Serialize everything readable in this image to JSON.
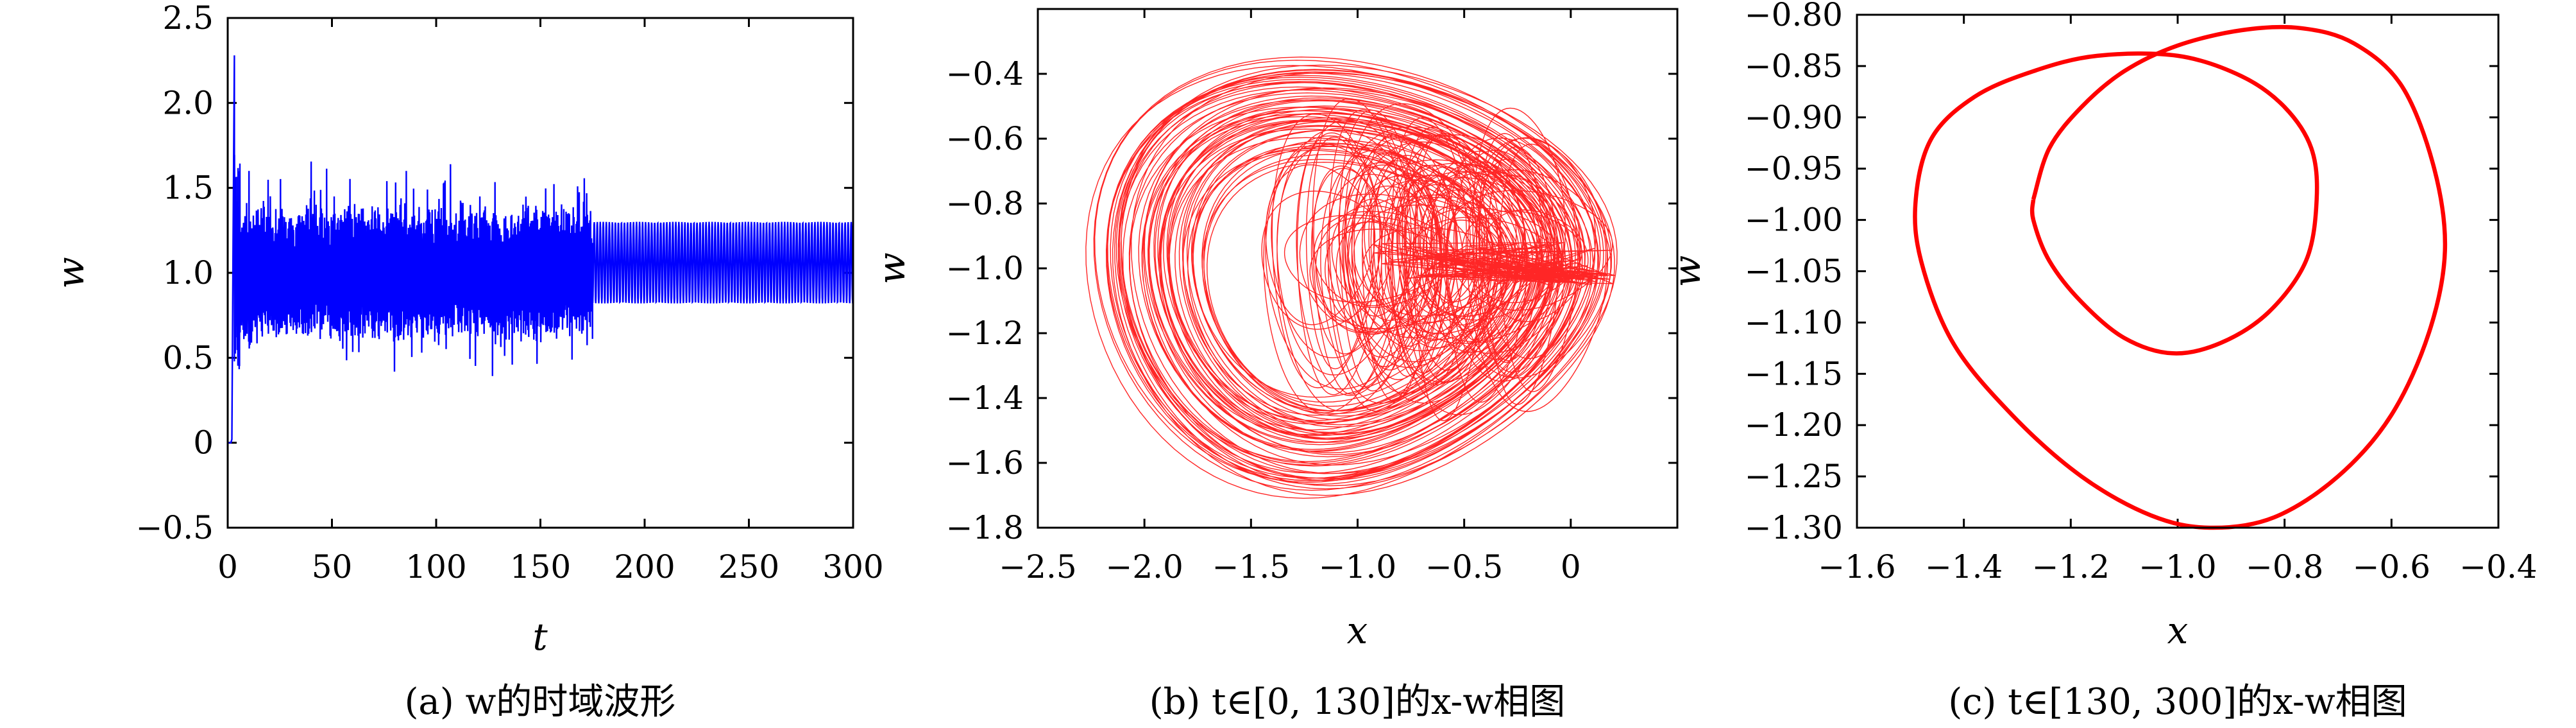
{
  "chart_data": [
    {
      "type": "line",
      "xlabel": "t",
      "ylabel": "w",
      "caption": "(a) w的时域波形",
      "xlim": [
        0,
        300
      ],
      "ylim": [
        -0.5,
        2.5
      ],
      "xticks": [
        "0",
        "50",
        "100",
        "150",
        "200",
        "250",
        "300"
      ],
      "yticks": [
        "−0.5",
        "0",
        "0.5",
        "1.0",
        "1.5",
        "2.0",
        "2.5"
      ],
      "series": [
        {
          "color": "#0000ff",
          "segments": [
            {
              "t": [
                0,
                1.5,
                2,
                2.6,
                3.2
              ],
              "w": [
                0,
                0,
                0.02,
                1.2,
                2.28
              ]
            },
            {
              "t_start": 3.2,
              "t_end": 175,
              "description_kind": "chaotic",
              "w_min": 0.35,
              "w_max": 1.72,
              "w_mean": 1.0
            },
            {
              "t_start": 175,
              "t_end": 300,
              "description_kind": "periodic",
              "w_min": 0.82,
              "w_max": 1.3
            }
          ]
        }
      ]
    },
    {
      "type": "line",
      "xlabel": "x",
      "ylabel": "w",
      "caption": "(b) t∈[0, 130]的x-w相图",
      "xlim": [
        -2.5,
        0.5
      ],
      "ylim": [
        -1.8,
        -0.2
      ],
      "xticks": [
        "−2.5",
        "−2.0",
        "−1.5",
        "−1.0",
        "−0.5",
        "0"
      ],
      "yticks": [
        "−1.8",
        "−1.6",
        "−1.4",
        "−1.2",
        "−1.0",
        "−0.8",
        "−0.6",
        "−0.4"
      ],
      "series": [
        {
          "color": "#ff0000",
          "description_kind": "chaotic attractor",
          "x_range": [
            -2.3,
            0.22
          ],
          "w_range": [
            -1.75,
            -0.33
          ],
          "center": [
            -0.95,
            -1.0
          ]
        }
      ]
    },
    {
      "type": "line",
      "xlabel": "x",
      "ylabel": "w",
      "caption": "(c) t∈[130, 300]的x-w相图",
      "xlim": [
        -1.6,
        -0.4
      ],
      "ylim": [
        -1.3,
        -0.8
      ],
      "xticks": [
        "−1.6",
        "−1.4",
        "−1.2",
        "−1.0",
        "−0.8",
        "−0.6",
        "−0.4"
      ],
      "yticks": [
        "−1.30",
        "−1.25",
        "−1.20",
        "−1.15",
        "−1.10",
        "−1.05",
        "−1.00",
        "−0.95",
        "−0.90",
        "−0.85",
        "−0.80"
      ],
      "series": [
        {
          "color": "#ff0000",
          "description_kind": "periodic limit cycle",
          "points": [
            [
              -1.27,
              -0.98
            ],
            [
              -1.24,
              -0.93
            ],
            [
              -1.18,
              -0.89
            ],
            [
              -1.1,
              -0.855
            ],
            [
              -1.0,
              -0.83
            ],
            [
              -0.88,
              -0.815
            ],
            [
              -0.77,
              -0.813
            ],
            [
              -0.67,
              -0.828
            ],
            [
              -0.58,
              -0.87
            ],
            [
              -0.52,
              -0.95
            ],
            [
              -0.5,
              -1.03
            ],
            [
              -0.53,
              -1.11
            ],
            [
              -0.6,
              -1.19
            ],
            [
              -0.7,
              -1.25
            ],
            [
              -0.82,
              -1.29
            ],
            [
              -0.94,
              -1.3
            ],
            [
              -1.05,
              -1.288
            ],
            [
              -1.18,
              -1.25
            ],
            [
              -1.31,
              -1.19
            ],
            [
              -1.42,
              -1.12
            ],
            [
              -1.48,
              -1.04
            ],
            [
              -1.49,
              -0.98
            ],
            [
              -1.46,
              -0.92
            ],
            [
              -1.38,
              -0.88
            ],
            [
              -1.27,
              -0.855
            ],
            [
              -1.15,
              -0.84
            ],
            [
              -1.0,
              -0.84
            ],
            [
              -0.88,
              -0.86
            ],
            [
              -0.8,
              -0.89
            ],
            [
              -0.75,
              -0.93
            ],
            [
              -0.74,
              -0.98
            ],
            [
              -0.76,
              -1.04
            ],
            [
              -0.83,
              -1.09
            ],
            [
              -0.92,
              -1.12
            ],
            [
              -1.01,
              -1.13
            ],
            [
              -1.1,
              -1.115
            ],
            [
              -1.18,
              -1.08
            ],
            [
              -1.24,
              -1.04
            ],
            [
              -1.27,
              -1.0
            ],
            [
              -1.27,
              -0.98
            ]
          ]
        }
      ]
    }
  ]
}
